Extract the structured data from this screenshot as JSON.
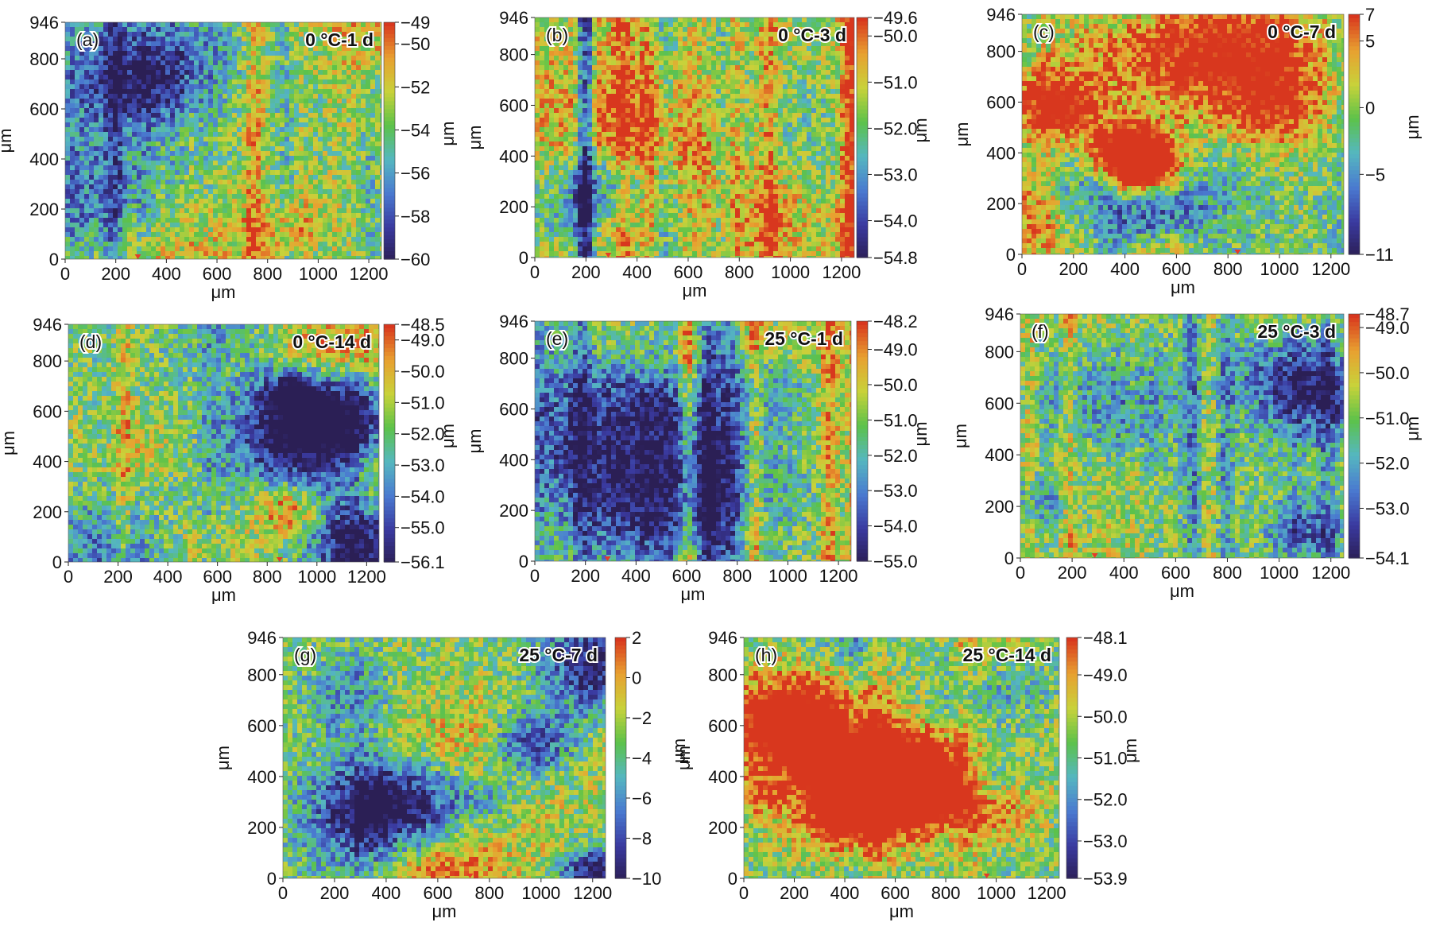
{
  "colors": {
    "colormap": [
      "#2b1f55",
      "#3a3aa0",
      "#4a7ad0",
      "#55b7c0",
      "#5cc24a",
      "#c8d23a",
      "#e8a030",
      "#d8371e"
    ],
    "marker": "#e63a2a"
  },
  "chart_data": [
    {
      "type": "heatmap",
      "panel_label": "(a)",
      "condition": "0 °C-1 d",
      "xlabel": "μm",
      "ylabel": "μm",
      "colorbar_label": "μm",
      "xlim": [
        0,
        1250
      ],
      "ylim": [
        0,
        946
      ],
      "x_ticks": [
        "0",
        "200",
        "400",
        "600",
        "800",
        "1000",
        "1200"
      ],
      "y_ticks": [
        "0",
        "200",
        "400",
        "600",
        "800",
        "946"
      ],
      "colorbar_range": [
        -60,
        -49
      ],
      "colorbar_ticks": [
        "-49",
        "-50",
        "-52",
        "-54",
        "-56",
        "-58",
        "-60"
      ],
      "colorbar_tick_values": [
        -49,
        -50,
        -52,
        -54,
        -56,
        -58,
        -60
      ]
    },
    {
      "type": "heatmap",
      "panel_label": "(b)",
      "condition": "0 °C-3 d",
      "xlabel": "μm",
      "ylabel": "μm",
      "colorbar_label": "μm",
      "xlim": [
        0,
        1250
      ],
      "ylim": [
        0,
        946
      ],
      "x_ticks": [
        "0",
        "200",
        "400",
        "600",
        "800",
        "1000",
        "1200"
      ],
      "y_ticks": [
        "0",
        "200",
        "400",
        "600",
        "800",
        "946"
      ],
      "colorbar_range": [
        -54.8,
        -49.6
      ],
      "colorbar_ticks": [
        "-49.6",
        "-50.0",
        "-51.0",
        "-52.0",
        "-53.0",
        "-54.0",
        "-54.8"
      ],
      "colorbar_tick_values": [
        -49.6,
        -50.0,
        -51.0,
        -52.0,
        -53.0,
        -54.0,
        -54.8
      ]
    },
    {
      "type": "heatmap",
      "panel_label": "(c)",
      "condition": "0 °C-7 d",
      "xlabel": "μm",
      "ylabel": "μm",
      "colorbar_label": "μm",
      "xlim": [
        0,
        1250
      ],
      "ylim": [
        0,
        946
      ],
      "x_ticks": [
        "0",
        "200",
        "400",
        "600",
        "800",
        "1000",
        "1200"
      ],
      "y_ticks": [
        "0",
        "200",
        "400",
        "600",
        "800",
        "946"
      ],
      "colorbar_range": [
        -11,
        7
      ],
      "colorbar_ticks": [
        "7",
        "5",
        "0",
        "-5",
        "-11"
      ],
      "colorbar_tick_values": [
        7,
        5,
        0,
        -5,
        -11
      ]
    },
    {
      "type": "heatmap",
      "panel_label": "(d)",
      "condition": "0 °C-14 d",
      "xlabel": "μm",
      "ylabel": "μm",
      "colorbar_label": "μm",
      "xlim": [
        0,
        1250
      ],
      "ylim": [
        0,
        946
      ],
      "x_ticks": [
        "0",
        "200",
        "400",
        "600",
        "800",
        "1000",
        "1200"
      ],
      "y_ticks": [
        "0",
        "200",
        "400",
        "600",
        "800",
        "946"
      ],
      "colorbar_range": [
        -56.1,
        -48.5
      ],
      "colorbar_ticks": [
        "-48.5",
        "-49.0",
        "-50.0",
        "-51.0",
        "-52.0",
        "-53.0",
        "-54.0",
        "-55.0",
        "-56.1"
      ],
      "colorbar_tick_values": [
        -48.5,
        -49.0,
        -50.0,
        -51.0,
        -52.0,
        -53.0,
        -54.0,
        -55.0,
        -56.1
      ]
    },
    {
      "type": "heatmap",
      "panel_label": "(e)",
      "condition": "25 °C-1 d",
      "xlabel": "μm",
      "ylabel": "μm",
      "colorbar_label": "μm",
      "xlim": [
        0,
        1250
      ],
      "ylim": [
        0,
        946
      ],
      "x_ticks": [
        "0",
        "200",
        "400",
        "600",
        "800",
        "1000",
        "1200"
      ],
      "y_ticks": [
        "0",
        "200",
        "400",
        "600",
        "800",
        "946"
      ],
      "colorbar_range": [
        -55.0,
        -48.2
      ],
      "colorbar_ticks": [
        "-48.2",
        "-49.0",
        "-50.0",
        "-51.0",
        "-52.0",
        "-53.0",
        "-54.0",
        "-55.0"
      ],
      "colorbar_tick_values": [
        -48.2,
        -49.0,
        -50.0,
        -51.0,
        -52.0,
        -53.0,
        -54.0,
        -55.0
      ]
    },
    {
      "type": "heatmap",
      "panel_label": "(f)",
      "condition": "25 °C-3 d",
      "xlabel": "μm",
      "ylabel": "μm",
      "colorbar_label": "μm",
      "xlim": [
        0,
        1250
      ],
      "ylim": [
        0,
        946
      ],
      "x_ticks": [
        "0",
        "200",
        "400",
        "600",
        "800",
        "1000",
        "1200"
      ],
      "y_ticks": [
        "0",
        "200",
        "400",
        "600",
        "800",
        "946"
      ],
      "colorbar_range": [
        -54.1,
        -48.7
      ],
      "colorbar_ticks": [
        "-48.7",
        "-49.0",
        "-50.0",
        "-51.0",
        "-52.0",
        "-53.0",
        "-54.1"
      ],
      "colorbar_tick_values": [
        -48.7,
        -49.0,
        -50.0,
        -51.0,
        -52.0,
        -53.0,
        -54.1
      ]
    },
    {
      "type": "heatmap",
      "panel_label": "(g)",
      "condition": "25 °C-7 d",
      "xlabel": "μm",
      "ylabel": "μm",
      "colorbar_label": "μm",
      "xlim": [
        0,
        1250
      ],
      "ylim": [
        0,
        946
      ],
      "x_ticks": [
        "0",
        "200",
        "400",
        "600",
        "800",
        "1000",
        "1200"
      ],
      "y_ticks": [
        "0",
        "200",
        "400",
        "600",
        "800",
        "946"
      ],
      "colorbar_range": [
        -10,
        2
      ],
      "colorbar_ticks": [
        "2",
        "0",
        "-2",
        "-4",
        "-6",
        "-8",
        "-10"
      ],
      "colorbar_tick_values": [
        2,
        0,
        -2,
        -4,
        -6,
        -8,
        -10
      ]
    },
    {
      "type": "heatmap",
      "panel_label": "(h)",
      "condition": "25 °C-14 d",
      "xlabel": "μm",
      "ylabel": "μm",
      "colorbar_label": "μm",
      "xlim": [
        0,
        1250
      ],
      "ylim": [
        0,
        946
      ],
      "x_ticks": [
        "0",
        "200",
        "400",
        "600",
        "800",
        "1000",
        "1200"
      ],
      "y_ticks": [
        "0",
        "200",
        "400",
        "600",
        "800",
        "946"
      ],
      "colorbar_range": [
        -53.9,
        -48.1
      ],
      "colorbar_ticks": [
        "-48.1",
        "-49.0",
        "-50.0",
        "-51.0",
        "-52.0",
        "-53.0",
        "-53.9"
      ],
      "colorbar_tick_values": [
        -48.1,
        -49.0,
        -50.0,
        -51.0,
        -52.0,
        -53.0,
        -53.9
      ]
    }
  ]
}
